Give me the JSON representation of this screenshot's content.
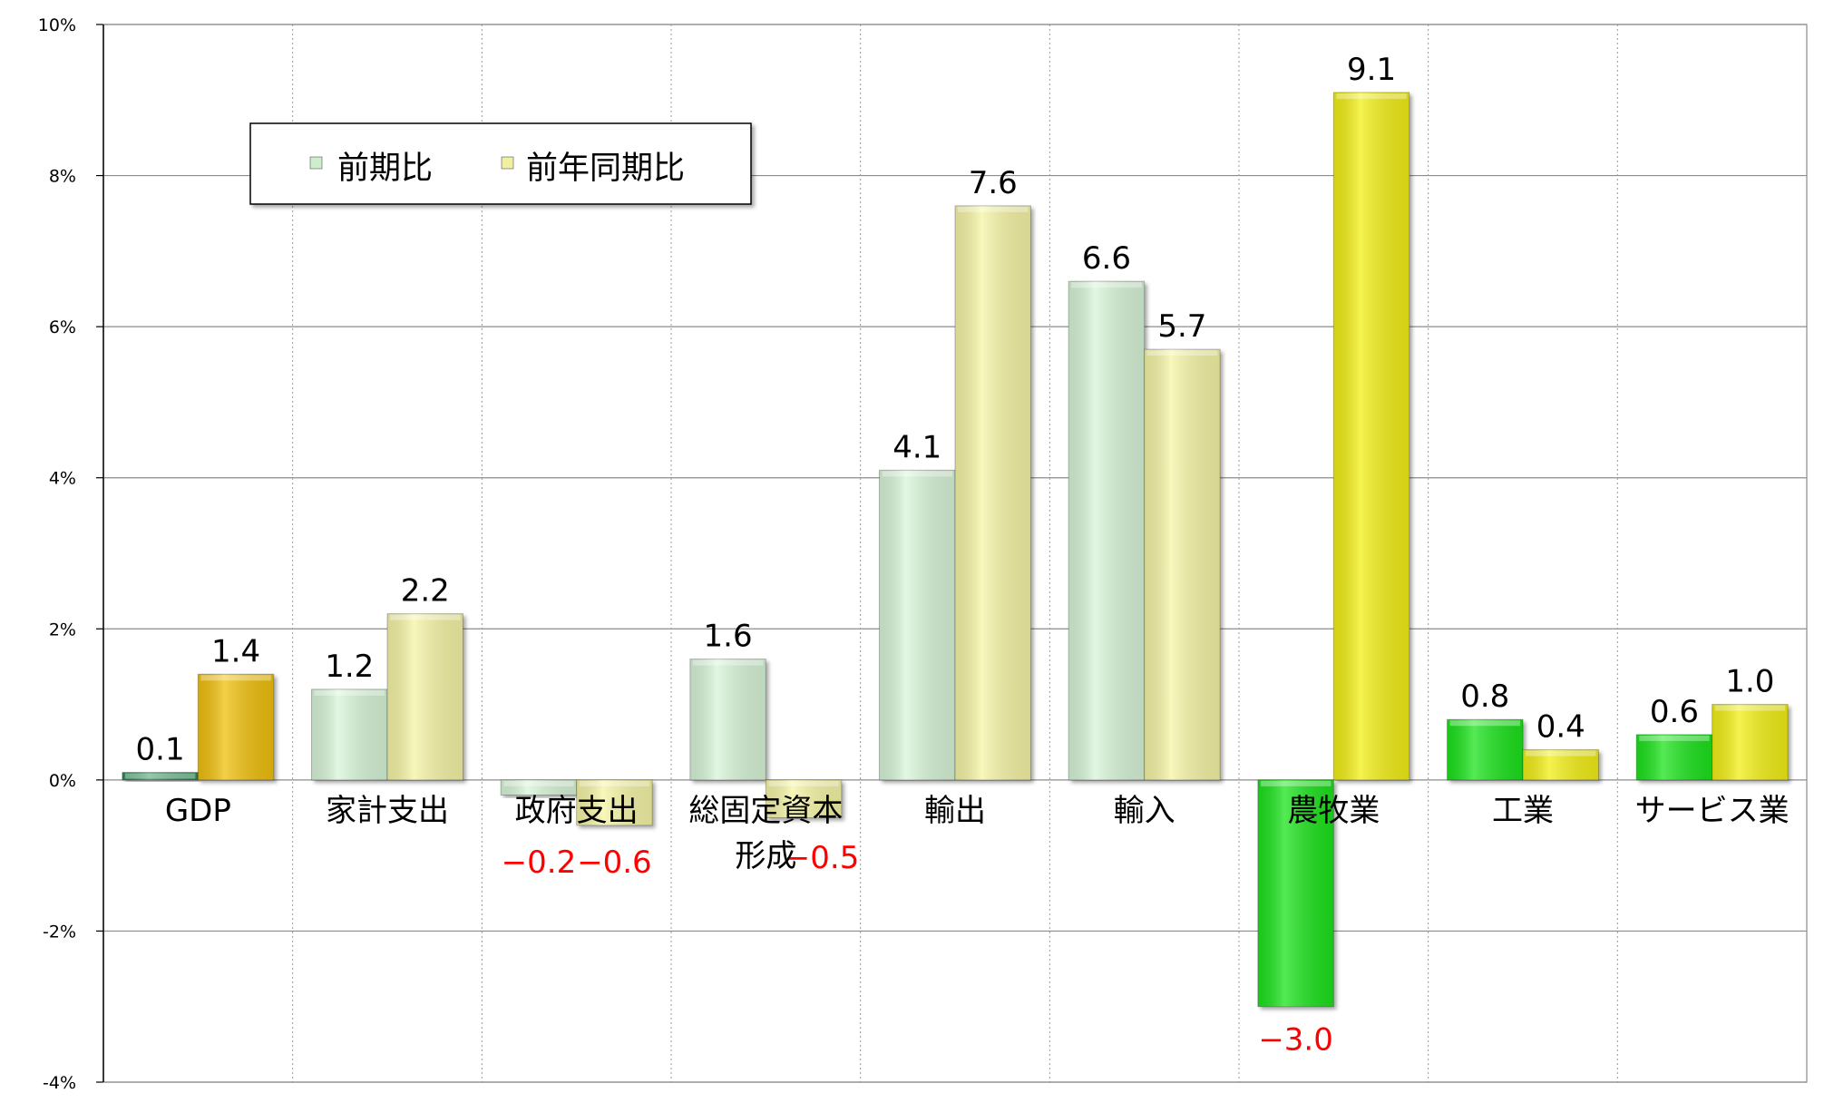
{
  "chart_data": {
    "type": "bar",
    "title": "",
    "xlabel": "",
    "ylabel": "",
    "ylim": [
      -4,
      10
    ],
    "y_ticks": [
      "-4%",
      "-2%",
      "0%",
      "2%",
      "4%",
      "6%",
      "8%",
      "10%"
    ],
    "y_tick_values": [
      -4,
      -2,
      0,
      2,
      4,
      6,
      8,
      10
    ],
    "grid": true,
    "legend_position": "top-left",
    "categories": [
      {
        "label": "GDP",
        "label_lines": [
          "GDP"
        ]
      },
      {
        "label": "家計支出",
        "label_lines": [
          "家計支出"
        ]
      },
      {
        "label": "政府支出",
        "label_lines": [
          "政府支出"
        ]
      },
      {
        "label": "総固定資本形成",
        "label_lines": [
          "総固定資本",
          "形成"
        ]
      },
      {
        "label": "輸出",
        "label_lines": [
          "輸出"
        ]
      },
      {
        "label": "輸入",
        "label_lines": [
          "輸入"
        ]
      },
      {
        "label": "農牧業",
        "label_lines": [
          "農牧業"
        ]
      },
      {
        "label": "工業",
        "label_lines": [
          "工業"
        ]
      },
      {
        "label": "サービス業",
        "label_lines": [
          "サービス業"
        ]
      }
    ],
    "series": [
      {
        "name": "前期比",
        "values": [
          0.1,
          1.2,
          -0.2,
          1.6,
          4.1,
          6.6,
          -3.0,
          0.8,
          0.6
        ],
        "labels": [
          "0.1",
          "1.2",
          "−0.2",
          "1.6",
          "4.1",
          "6.6",
          "−3.0",
          "0.8",
          "0.6"
        ],
        "colors": [
          "#2e8b57",
          "#d8f5d8",
          "#d8f5d8",
          "#d8f5d8",
          "#d8f5d8",
          "#d8f5d8",
          "#1ee31e",
          "#1ee31e",
          "#1ee31e"
        ]
      },
      {
        "name": "前年同期比",
        "values": [
          1.4,
          2.2,
          -0.6,
          -0.5,
          7.6,
          5.7,
          9.1,
          0.4,
          1.0
        ],
        "labels": [
          "1.4",
          "2.2",
          "−0.6",
          "−0.5",
          "7.6",
          "5.7",
          "9.1",
          "0.4",
          "1.0"
        ],
        "colors": [
          "#f0c010",
          "#f6f5a6",
          "#f6f5a6",
          "#f6f5a6",
          "#f6f5a6",
          "#f6f5a6",
          "#f2ef14",
          "#f2ef14",
          "#f2ef14"
        ]
      }
    ],
    "legend": {
      "series_colors": [
        "#cdeecd",
        "#f1efa0"
      ]
    },
    "label_colors": {
      "positive": "#000000",
      "negative": "#ff0000"
    }
  }
}
